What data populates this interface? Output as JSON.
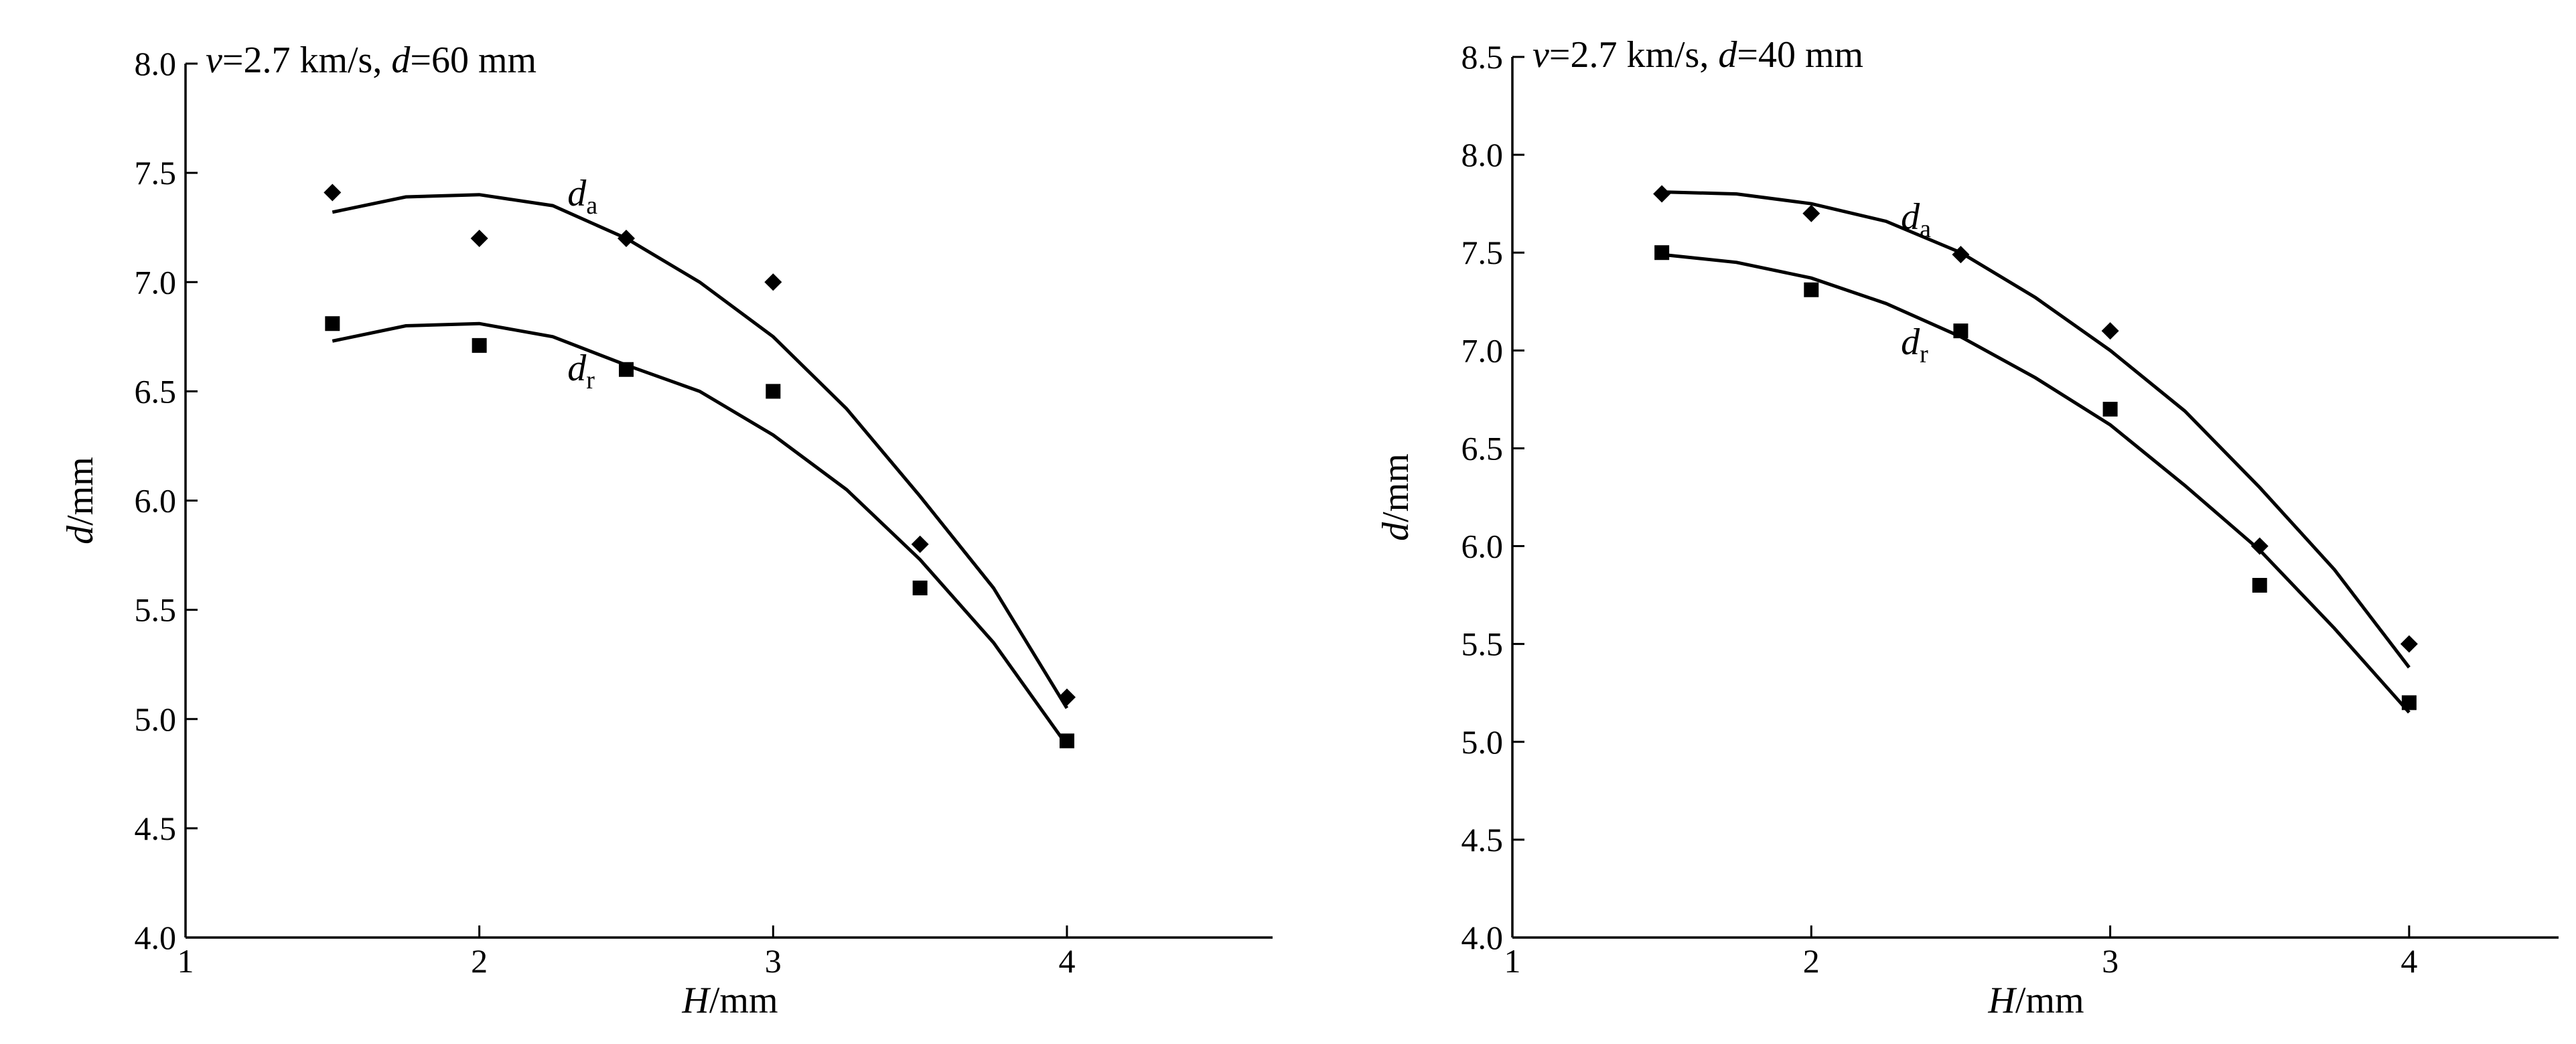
{
  "chart_data": [
    {
      "type": "scatter",
      "annotation": "v=2.7 km/s, d=60 mm",
      "annotation_parts": [
        "v",
        "=2.7 km/s, ",
        "d",
        "=60 mm"
      ],
      "xlabel": "H/mm",
      "xlabel_parts": [
        "H",
        "/mm"
      ],
      "ylabel": "d/mm",
      "ylabel_parts": [
        "d",
        "/mm"
      ],
      "xlim": [
        1,
        4.7
      ],
      "ylim": [
        4.0,
        8.0
      ],
      "xticks": [
        1,
        2,
        3,
        4
      ],
      "yticks": [
        4.0,
        4.5,
        5.0,
        5.5,
        6.0,
        6.5,
        7.0,
        7.5,
        8.0
      ],
      "grid": false,
      "series": [
        {
          "name": "da",
          "label_main": "d",
          "label_sub": "a",
          "marker": "diamond",
          "x": [
            1.5,
            2.0,
            2.5,
            3.0,
            3.5,
            4.0
          ],
          "y": [
            7.41,
            7.2,
            7.2,
            7.0,
            5.8,
            5.1
          ],
          "fit_x": [
            1.5,
            1.75,
            2.0,
            2.25,
            2.5,
            2.75,
            3.0,
            3.25,
            3.5,
            3.75,
            4.0
          ],
          "fit_y": [
            7.32,
            7.39,
            7.4,
            7.35,
            7.2,
            7.0,
            6.75,
            6.42,
            6.02,
            5.6,
            5.05
          ],
          "label_at": [
            2.3,
            7.35
          ]
        },
        {
          "name": "dr",
          "label_main": "d",
          "label_sub": "r",
          "marker": "square",
          "x": [
            1.5,
            2.0,
            2.5,
            3.0,
            3.5,
            4.0
          ],
          "y": [
            6.81,
            6.71,
            6.6,
            6.5,
            5.6,
            4.9
          ],
          "fit_x": [
            1.5,
            1.75,
            2.0,
            2.25,
            2.5,
            2.75,
            3.0,
            3.25,
            3.5,
            3.75,
            4.0
          ],
          "fit_y": [
            6.73,
            6.8,
            6.81,
            6.75,
            6.62,
            6.5,
            6.3,
            6.05,
            5.73,
            5.35,
            4.88
          ],
          "label_at": [
            2.3,
            6.55
          ]
        }
      ]
    },
    {
      "type": "scatter",
      "annotation": "v=2.7 km/s, d=40 mm",
      "annotation_parts": [
        "v",
        "=2.7 km/s, ",
        "d",
        "=40 mm"
      ],
      "xlabel": "H/mm",
      "xlabel_parts": [
        "H",
        "/mm"
      ],
      "ylabel": "d/mm",
      "ylabel_parts": [
        "d",
        "/mm"
      ],
      "xlim": [
        1,
        4.5
      ],
      "ylim": [
        4.0,
        8.5
      ],
      "xticks": [
        1,
        2,
        3,
        4
      ],
      "yticks": [
        4.0,
        4.5,
        5.0,
        5.5,
        6.0,
        6.5,
        7.0,
        7.5,
        8.0,
        8.5
      ],
      "grid": false,
      "series": [
        {
          "name": "da",
          "label_main": "d",
          "label_sub": "a",
          "marker": "diamond",
          "x": [
            1.5,
            2.0,
            2.5,
            3.0,
            3.5,
            4.0
          ],
          "y": [
            7.8,
            7.7,
            7.49,
            7.1,
            6.0,
            5.5
          ],
          "fit_x": [
            1.5,
            1.75,
            2.0,
            2.25,
            2.5,
            2.75,
            3.0,
            3.25,
            3.5,
            3.75,
            4.0
          ],
          "fit_y": [
            7.81,
            7.8,
            7.75,
            7.66,
            7.5,
            7.27,
            7.0,
            6.69,
            6.3,
            5.88,
            5.38
          ],
          "label_at": [
            2.3,
            7.62
          ]
        },
        {
          "name": "dr",
          "label_main": "d",
          "label_sub": "r",
          "marker": "square",
          "x": [
            1.5,
            2.0,
            2.5,
            3.0,
            3.5,
            4.0
          ],
          "y": [
            7.5,
            7.31,
            7.1,
            6.7,
            5.8,
            5.2
          ],
          "fit_x": [
            1.5,
            1.75,
            2.0,
            2.25,
            2.5,
            2.75,
            3.0,
            3.25,
            3.5,
            3.75,
            4.0
          ],
          "fit_y": [
            7.49,
            7.45,
            7.37,
            7.24,
            7.07,
            6.86,
            6.62,
            6.31,
            5.98,
            5.58,
            5.15
          ],
          "label_at": [
            2.3,
            6.98
          ]
        }
      ]
    }
  ]
}
